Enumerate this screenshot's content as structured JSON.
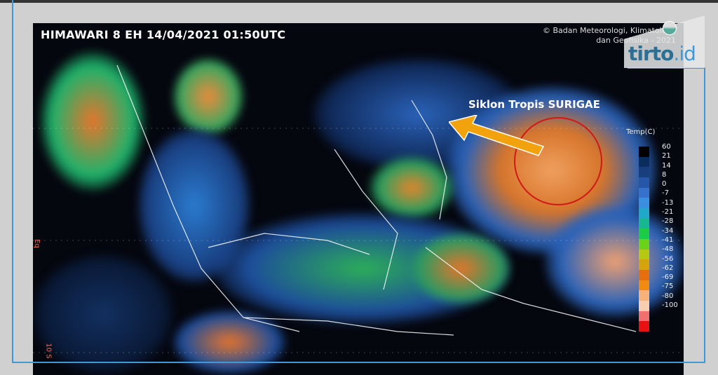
{
  "title": "HIMAWARI 8 EH 14/04/2021  01:50UTC",
  "credit_line1": "© Badan Meteorologi, Klimatologi,",
  "credit_line2": "dan Geofisika - 2021",
  "annotation": "Siklon Tropis SURIGAE",
  "annotation_colors": {
    "arrow": "#f2a20c",
    "circle": "#d01818"
  },
  "colorbar": {
    "title": "Temp(C)",
    "labels": [
      "60",
      "21",
      "14",
      "8",
      "0",
      "-7",
      "-13",
      "-21",
      "-28",
      "-34",
      "-41",
      "-48",
      "-56",
      "-62",
      "-69",
      "-75",
      "-80",
      "-100"
    ],
    "colors": [
      "#000000",
      "#0b2d5e",
      "#173f7e",
      "#2556a8",
      "#3672cc",
      "#3a8fe0",
      "#1fa8c8",
      "#17b890",
      "#1ecb45",
      "#6ad21a",
      "#b5c812",
      "#d6a30c",
      "#e46f0c",
      "#f08a14",
      "#f6b27a",
      "#f9cdb0",
      "#f07070",
      "#e81010"
    ]
  },
  "axis_labels": {
    "equator": "Eq",
    "south": "10 S"
  },
  "watermark": {
    "brand": "tirto",
    "suffix": ".id"
  }
}
